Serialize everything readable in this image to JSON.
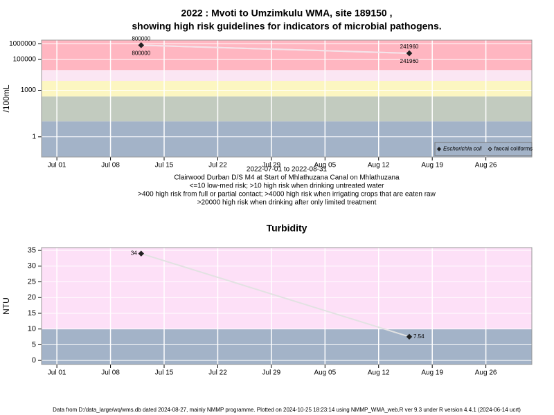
{
  "chart_data": [
    {
      "type": "line",
      "title": [
        "2022 : Mvoti to Umzimkulu WMA, site 189150 ,",
        "showing high risk guidelines for indicators of microbial pathogens."
      ],
      "ylabel": "/100mL",
      "notes": [
        "2022-07-01 to 2022-08-31",
        "Clairwood Durban D/S M4 at Start of Mhlathuzana Canal on Mhlathuzana",
        "<=10 low-med risk; >10 high risk when drinking untreated water",
        ">400 high risk from full or partial contact; >4000 high risk when irrigating crops that are eaten raw",
        ">20000 high risk when drinking after only limited treatment"
      ],
      "x": [
        "2022-07-12",
        "2022-08-16"
      ],
      "series": [
        {
          "name": "Escherichia coli",
          "color": "#222222",
          "marker": "filled",
          "line_color": "#f4e4ea",
          "label_pos": "above",
          "values": [
            800000,
            241960
          ]
        },
        {
          "name": "faecal coliforms",
          "color": "#222222",
          "marker": "open",
          "line_color": "#f4e4ea",
          "label_pos": "below",
          "values": [
            800000,
            241960
          ]
        }
      ],
      "log_y": true,
      "ylim": [
        0.05,
        1700000
      ],
      "yticks": [
        1,
        1000,
        100000,
        1000000
      ],
      "xlim": [
        "2022-06-29",
        "2022-09-01"
      ],
      "xticks": [
        {
          "value": "2022-07-01",
          "label": "Jul 01"
        },
        {
          "value": "2022-07-08",
          "label": "Jul 08"
        },
        {
          "value": "2022-07-15",
          "label": "Jul 15"
        },
        {
          "value": "2022-07-22",
          "label": "Jul 22"
        },
        {
          "value": "2022-07-29",
          "label": "Jul 29"
        },
        {
          "value": "2022-08-05",
          "label": "Aug 05"
        },
        {
          "value": "2022-08-12",
          "label": "Aug 12"
        },
        {
          "value": "2022-08-19",
          "label": "Aug 19"
        },
        {
          "value": "2022-08-26",
          "label": "Aug 26"
        }
      ],
      "band_breaks": [
        10,
        400,
        4000,
        20000
      ],
      "band_colors": [
        "#a3b3c8",
        "#c2cbbf",
        "#fcf6c1",
        "#fbe6f3",
        "#ffb6c1"
      ],
      "grid": true,
      "legend": "bottom-right"
    },
    {
      "type": "line",
      "title": [
        "Turbidity"
      ],
      "ylabel": "NTU",
      "x": [
        "2022-07-12",
        "2022-08-16"
      ],
      "series": [
        {
          "color": "#222222",
          "marker": "filled",
          "line_color": "#e2e2e2",
          "label_pos": "sides",
          "values": [
            34,
            7.54
          ]
        }
      ],
      "log_y": false,
      "ylim": [
        -1.3,
        35.9
      ],
      "yticks": [
        0,
        5,
        10,
        15,
        20,
        25,
        30,
        35
      ],
      "xlim": [
        "2022-06-29",
        "2022-09-01"
      ],
      "xticks": [
        {
          "value": "2022-07-01",
          "label": "Jul 01"
        },
        {
          "value": "2022-07-08",
          "label": "Jul 08"
        },
        {
          "value": "2022-07-15",
          "label": "Jul 15"
        },
        {
          "value": "2022-07-22",
          "label": "Jul 22"
        },
        {
          "value": "2022-07-29",
          "label": "Jul 29"
        },
        {
          "value": "2022-08-05",
          "label": "Aug 05"
        },
        {
          "value": "2022-08-12",
          "label": "Aug 12"
        },
        {
          "value": "2022-08-19",
          "label": "Aug 19"
        },
        {
          "value": "2022-08-26",
          "label": "Aug 26"
        }
      ],
      "band_breaks": [
        10
      ],
      "band_colors": [
        "#a3b3c8",
        "#fde0f7"
      ],
      "grid": true
    }
  ],
  "footer": "Data from D:/data_large/wq/wms.db dated 2024-08-27, mainly NMMP programme. Plotted on 2024-10-25 18:23:14 using NMMP_WMA_web.R ver 9.3 under R version 4.4.1 (2024-06-14 ucrt)"
}
